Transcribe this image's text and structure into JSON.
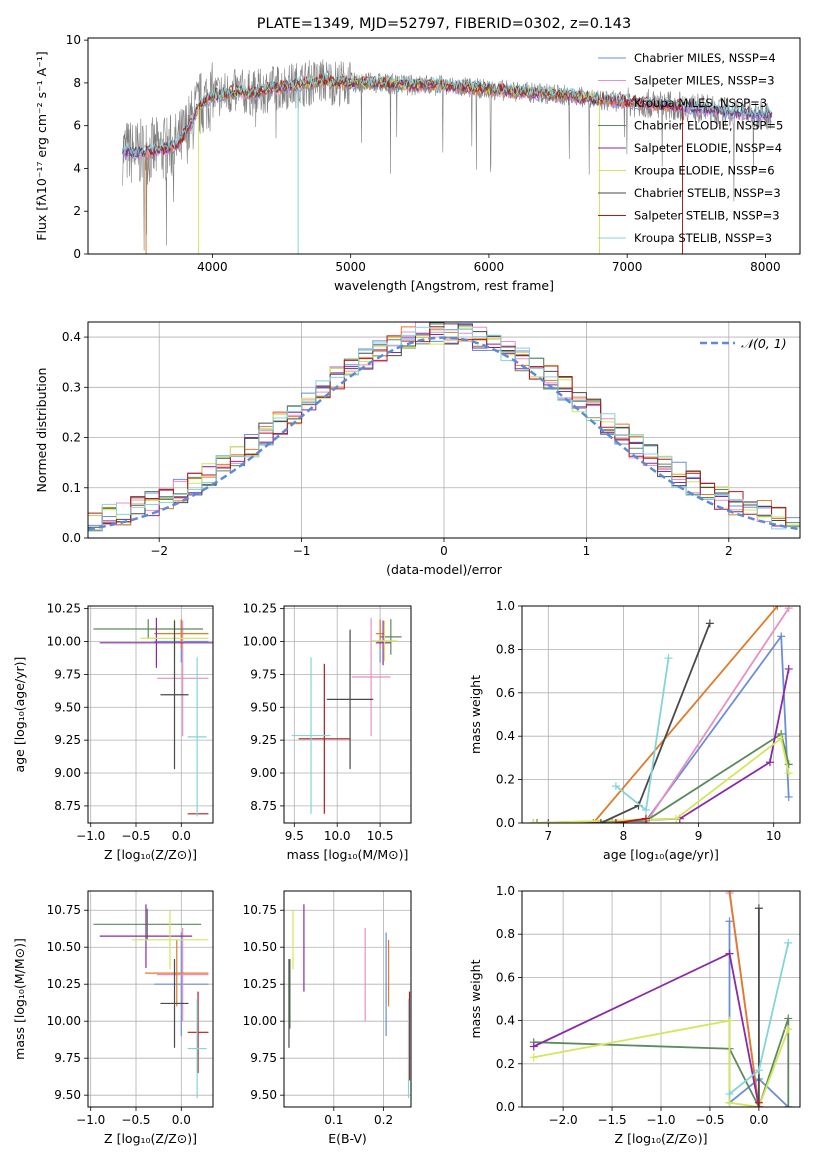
{
  "chart_data": [
    {
      "id": "spectrum",
      "type": "line",
      "title": "PLATE=1349, MJD=52797, FIBERID=0302, z=0.143",
      "xlabel": "wavelength [Angstrom, rest frame]",
      "ylabel": "Flux [fλ10⁻¹⁷ erg cm⁻² s⁻¹ A⁻¹]",
      "xlim": [
        3100,
        8250
      ],
      "ylim": [
        0,
        10.1
      ],
      "xticks": [
        "4000",
        "5000",
        "6000",
        "7000",
        "8000"
      ],
      "yticks": [
        "0",
        "2",
        "4",
        "6",
        "8",
        "10"
      ],
      "grid": false,
      "legend": [
        {
          "name": "Chabrier MILES, NSSP=4",
          "color": "#6a8fd6"
        },
        {
          "name": "Salpeter MILES, NSSP=3",
          "color": "#e88fc4"
        },
        {
          "name": "Kroupa MILES, NSSP=3",
          "color": "#e07b2a"
        },
        {
          "name": "Chabrier ELODIE, NSSP=5",
          "color": "#5c8a5c"
        },
        {
          "name": "Salpeter ELODIE, NSSP=4",
          "color": "#8a2aa6"
        },
        {
          "name": "Kroupa ELODIE, NSSP=6",
          "color": "#d4e65a"
        },
        {
          "name": "Chabrier STELIB, NSSP=3",
          "color": "#4a4a4a"
        },
        {
          "name": "Salpeter STELIB, NSSP=3",
          "color": "#b31b1b"
        },
        {
          "name": "Kroupa STELIB, NSSP=3",
          "color": "#84d4d8"
        }
      ],
      "legend_placement": "right",
      "data_grey": "#808080",
      "continuum": [
        [
          3350,
          4.8
        ],
        [
          3450,
          4.7
        ],
        [
          3550,
          4.8
        ],
        [
          3650,
          4.9
        ],
        [
          3750,
          5.1
        ],
        [
          3800,
          5.6
        ],
        [
          3850,
          6.2
        ],
        [
          3900,
          6.9
        ],
        [
          3950,
          7.2
        ],
        [
          4000,
          7.4
        ],
        [
          4100,
          7.5
        ],
        [
          4200,
          7.6
        ],
        [
          4300,
          7.5
        ],
        [
          4400,
          7.7
        ],
        [
          4500,
          7.8
        ],
        [
          4600,
          7.9
        ],
        [
          4700,
          8.0
        ],
        [
          4800,
          8.1
        ],
        [
          4900,
          8.0
        ],
        [
          5000,
          8.0
        ],
        [
          5200,
          8.0
        ],
        [
          5400,
          7.9
        ],
        [
          5600,
          7.9
        ],
        [
          5800,
          7.8
        ],
        [
          6000,
          7.7
        ],
        [
          6200,
          7.6
        ],
        [
          6400,
          7.5
        ],
        [
          6600,
          7.4
        ],
        [
          6800,
          7.2
        ],
        [
          7000,
          7.1
        ],
        [
          7200,
          7.0
        ],
        [
          7400,
          6.9
        ],
        [
          7600,
          6.75
        ],
        [
          7800,
          6.6
        ],
        [
          8000,
          6.5
        ]
      ]
    },
    {
      "id": "residuals",
      "type": "bar",
      "xlabel": "(data-model)/error",
      "ylabel": "Normed distribution",
      "xlim": [
        -2.5,
        2.5
      ],
      "ylim": [
        0,
        0.43
      ],
      "xticks": [
        "−2",
        "−1",
        "0",
        "1",
        "2"
      ],
      "yticks": [
        "0.0",
        "0.1",
        "0.2",
        "0.3",
        "0.4"
      ],
      "grid": true,
      "legend": [
        {
          "name": "𝒩(0, 1)",
          "color": "#5b8bd6"
        }
      ],
      "legend_placement": "top-right",
      "bin_width": 0.1,
      "x_start": -2.5
    },
    {
      "id": "age-vs-Z",
      "type": "scatter",
      "xlabel": "Z [log₁₀(Z/Z⊙)]",
      "ylabel": "age  [log₁₀(age/yr)]",
      "xlim": [
        -1.03,
        0.35
      ],
      "ylim": [
        8.62,
        10.27
      ],
      "xticks": [
        "−1.0",
        "−0.5",
        "0.0"
      ],
      "yticks": [
        "8.75",
        "9.00",
        "9.25",
        "9.50",
        "9.75",
        "10.00",
        "10.25"
      ],
      "grid": true,
      "error_bars": [
        {
          "color": "#6a8fd6",
          "x": [
            -0.3,
            0.3
          ],
          "y": [
            9.84,
            10.16
          ]
        },
        {
          "color": "#e88fc4",
          "x": [
            -0.27,
            0.3
          ],
          "y": [
            9.28,
            10.16
          ]
        },
        {
          "color": "#e07b2a",
          "x": [
            -0.3,
            0.3
          ],
          "y": [
            9.95,
            10.17
          ]
        },
        {
          "color": "#5c8a5c",
          "x": [
            -0.97,
            0.24
          ],
          "y": [
            10.02,
            10.17
          ]
        },
        {
          "color": "#8a2aa6",
          "x": [
            -0.9,
            0.35
          ],
          "y": [
            9.8,
            10.18
          ]
        },
        {
          "color": "#d4e65a",
          "x": [
            -0.45,
            0.3
          ],
          "y": [
            9.88,
            10.17
          ]
        },
        {
          "color": "#4a4a4a",
          "x": [
            -0.23,
            0.08
          ],
          "y": [
            9.03,
            10.16
          ]
        },
        {
          "color": "#b31b1b",
          "x": [
            0.07,
            0.3
          ],
          "y": [
            8.69,
            8.69
          ]
        },
        {
          "color": "#84d4d8",
          "x": [
            0.07,
            0.28
          ],
          "y": [
            8.67,
            9.88
          ]
        }
      ]
    },
    {
      "id": "age-vs-mass",
      "type": "scatter",
      "xlabel": "mass [log₁₀(M/M⊙)]",
      "ylabel": "",
      "xlim": [
        9.38,
        10.86
      ],
      "ylim": [
        8.62,
        10.27
      ],
      "xticks": [
        "9.5",
        "10.0",
        "10.5"
      ],
      "yticks": [
        "8.75",
        "9.00",
        "9.25",
        "9.50",
        "9.75",
        "10.00",
        "10.25"
      ],
      "grid": true,
      "error_bars": [
        {
          "color": "#6a8fd6",
          "x": [
            10.47,
            10.53
          ],
          "y": [
            9.84,
            10.16
          ]
        },
        {
          "color": "#e88fc4",
          "x": [
            10.17,
            10.62
          ],
          "y": [
            9.28,
            10.18
          ]
        },
        {
          "color": "#e07b2a",
          "x": [
            10.45,
            10.55
          ],
          "y": [
            9.95,
            10.17
          ]
        },
        {
          "color": "#5c8a5c",
          "x": [
            10.5,
            10.75
          ],
          "y": [
            9.9,
            10.17
          ]
        },
        {
          "color": "#8a2aa6",
          "x": [
            10.45,
            10.62
          ],
          "y": [
            9.82,
            10.16
          ]
        },
        {
          "color": "#d4e65a",
          "x": [
            10.4,
            10.7
          ],
          "y": [
            9.85,
            10.16
          ]
        },
        {
          "color": "#4a4a4a",
          "x": [
            9.88,
            10.42
          ],
          "y": [
            9.03,
            10.09
          ]
        },
        {
          "color": "#b31b1b",
          "x": [
            9.55,
            10.15
          ],
          "y": [
            8.69,
            9.83
          ]
        },
        {
          "color": "#84d4d8",
          "x": [
            9.47,
            9.92
          ],
          "y": [
            8.69,
            9.88
          ]
        }
      ]
    },
    {
      "id": "mass-weight-vs-age",
      "type": "line",
      "xlabel": "age  [log₁₀(age/yr)]",
      "ylabel": "mass weight",
      "xlim": [
        6.65,
        10.35
      ],
      "ylim": [
        0,
        1.0
      ],
      "xticks": [
        "7",
        "8",
        "9",
        "10"
      ],
      "yticks": [
        "0.0",
        "0.2",
        "0.4",
        "0.6",
        "0.8",
        "1.0"
      ],
      "grid": true,
      "series": [
        {
          "color": "#6a8fd6",
          "points": [
            [
              6.8,
              0.0
            ],
            [
              7.85,
              0.01
            ],
            [
              8.3,
              0.01
            ],
            [
              10.1,
              0.86
            ],
            [
              10.2,
              0.12
            ]
          ]
        },
        {
          "color": "#e88fc4",
          "points": [
            [
              7.8,
              0.0
            ],
            [
              8.3,
              0.0
            ],
            [
              10.2,
              0.99
            ]
          ]
        },
        {
          "color": "#e07b2a",
          "points": [
            [
              7.6,
              0.0
            ],
            [
              10.05,
              1.0
            ]
          ]
        },
        {
          "color": "#5c8a5c",
          "points": [
            [
              6.85,
              0.0
            ],
            [
              8.3,
              0.01
            ],
            [
              10.1,
              0.41
            ],
            [
              10.2,
              0.27
            ]
          ]
        },
        {
          "color": "#8a2aa6",
          "points": [
            [
              7.0,
              0.0
            ],
            [
              8.75,
              0.02
            ],
            [
              9.95,
              0.28
            ],
            [
              10.2,
              0.71
            ]
          ]
        },
        {
          "color": "#d4e65a",
          "points": [
            [
              6.8,
              0.0
            ],
            [
              8.7,
              0.02
            ],
            [
              10.1,
              0.39
            ],
            [
              10.2,
              0.23
            ]
          ]
        },
        {
          "color": "#4a4a4a",
          "points": [
            [
              7.7,
              0.0
            ],
            [
              8.2,
              0.08
            ],
            [
              9.15,
              0.92
            ]
          ]
        },
        {
          "color": "#b31b1b",
          "points": [
            [
              7.9,
              0.0
            ],
            [
              8.3,
              0.02
            ]
          ]
        },
        {
          "color": "#84d4d8",
          "points": [
            [
              7.9,
              0.17
            ],
            [
              8.3,
              0.06
            ],
            [
              8.6,
              0.76
            ]
          ]
        }
      ]
    },
    {
      "id": "mass-vs-Z",
      "type": "scatter",
      "xlabel": "Z [log₁₀(Z/Z⊙)]",
      "ylabel": "mass [log₁₀(M/M⊙)]",
      "xlim": [
        -1.03,
        0.35
      ],
      "ylim": [
        9.42,
        10.88
      ],
      "xticks": [
        "−1.0",
        "−0.5",
        "0.0"
      ],
      "yticks": [
        "9.50",
        "9.75",
        "10.00",
        "10.25",
        "10.50",
        "10.75"
      ],
      "grid": true,
      "error_bars": [
        {
          "color": "#6a8fd6",
          "x": [
            -0.3,
            0.3
          ],
          "y": [
            9.9,
            10.6
          ]
        },
        {
          "color": "#e88fc4",
          "x": [
            -0.27,
            0.3
          ],
          "y": [
            10.0,
            10.63
          ]
        },
        {
          "color": "#e07b2a",
          "x": [
            -0.4,
            0.3
          ],
          "y": [
            10.1,
            10.55
          ]
        },
        {
          "color": "#5c8a5c",
          "x": [
            -0.97,
            0.22
          ],
          "y": [
            10.55,
            10.76
          ]
        },
        {
          "color": "#8a2aa6",
          "x": [
            -0.9,
            0.12
          ],
          "y": [
            10.36,
            10.79
          ]
        },
        {
          "color": "#d4e65a",
          "x": [
            -0.55,
            0.3
          ],
          "y": [
            10.35,
            10.75
          ]
        },
        {
          "color": "#4a4a4a",
          "x": [
            -0.23,
            0.08
          ],
          "y": [
            9.82,
            10.42
          ]
        },
        {
          "color": "#b31b1b",
          "x": [
            0.07,
            0.3
          ],
          "y": [
            9.65,
            10.2
          ]
        },
        {
          "color": "#84d4d8",
          "x": [
            0.07,
            0.28
          ],
          "y": [
            9.48,
            10.15
          ]
        }
      ]
    },
    {
      "id": "mass-vs-EBV",
      "type": "scatter",
      "xlabel": "E(B-V)",
      "ylabel": "",
      "xlim": [
        0.0,
        0.255
      ],
      "ylim": [
        9.42,
        10.88
      ],
      "xticks": [
        "0.1",
        "0.2"
      ],
      "yticks": [
        "9.50",
        "9.75",
        "10.00",
        "10.25",
        "10.50",
        "10.75"
      ],
      "grid": true,
      "vbars": [
        {
          "color": "#6a8fd6",
          "x": 0.205,
          "y": [
            9.9,
            10.6
          ]
        },
        {
          "color": "#e88fc4",
          "x": 0.163,
          "y": [
            10.0,
            10.63
          ]
        },
        {
          "color": "#e07b2a",
          "x": 0.21,
          "y": [
            10.1,
            10.55
          ]
        },
        {
          "color": "#5c8a5c",
          "x": 0.012,
          "y": [
            9.95,
            10.42
          ]
        },
        {
          "color": "#8a2aa6",
          "x": 0.04,
          "y": [
            10.2,
            10.79
          ]
        },
        {
          "color": "#d4e65a",
          "x": 0.018,
          "y": [
            10.35,
            10.75
          ]
        },
        {
          "color": "#4a4a4a",
          "x": 0.01,
          "y": [
            9.82,
            10.42
          ]
        },
        {
          "color": "#b31b1b",
          "x": 0.252,
          "y": [
            9.6,
            10.2
          ]
        },
        {
          "color": "#84d4d8",
          "x": 0.25,
          "y": [
            9.48,
            10.15
          ]
        }
      ]
    },
    {
      "id": "mass-weight-vs-Z",
      "type": "line",
      "xlabel": "Z [log₁₀(Z/Z⊙)]",
      "ylabel": "mass weight",
      "xlim": [
        -2.42,
        0.42
      ],
      "ylim": [
        0,
        1.0
      ],
      "xticks": [
        "−2.0",
        "−1.5",
        "−1.0",
        "−0.5",
        "0.0"
      ],
      "yticks": [
        "0.0",
        "0.2",
        "0.4",
        "0.6",
        "0.8",
        "1.0"
      ],
      "grid": true,
      "series": [
        {
          "color": "#6a8fd6",
          "points": [
            [
              -0.3,
              0.86
            ],
            [
              -0.3,
              0.02
            ],
            [
              0.0,
              0.13
            ],
            [
              0.3,
              0.0
            ]
          ]
        },
        {
          "color": "#e88fc4",
          "points": [
            [
              -0.3,
              0.99
            ],
            [
              0.0,
              0.0
            ]
          ]
        },
        {
          "color": "#e07b2a",
          "points": [
            [
              -0.3,
              1.0
            ],
            [
              0.0,
              0.0
            ]
          ]
        },
        {
          "color": "#5c8a5c",
          "points": [
            [
              -2.3,
              0.3
            ],
            [
              -0.3,
              0.27
            ],
            [
              0.0,
              0.0
            ],
            [
              0.3,
              0.41
            ],
            [
              0.3,
              0.0
            ]
          ]
        },
        {
          "color": "#8a2aa6",
          "points": [
            [
              -2.3,
              0.28
            ],
            [
              -0.3,
              0.71
            ],
            [
              0.0,
              0.0
            ]
          ]
        },
        {
          "color": "#d4e65a",
          "points": [
            [
              -2.3,
              0.23
            ],
            [
              -0.3,
              0.4
            ],
            [
              -0.3,
              0.02
            ],
            [
              0.0,
              0.0
            ],
            [
              0.3,
              0.36
            ]
          ]
        },
        {
          "color": "#4a4a4a",
          "points": [
            [
              0.0,
              0.92
            ],
            [
              0.0,
              0.0
            ]
          ]
        },
        {
          "color": "#b31b1b",
          "points": [
            [
              0.0,
              0.02
            ]
          ]
        },
        {
          "color": "#84d4d8",
          "points": [
            [
              -0.3,
              0.06
            ],
            [
              0.0,
              0.17
            ],
            [
              0.3,
              0.76
            ]
          ]
        }
      ]
    }
  ]
}
